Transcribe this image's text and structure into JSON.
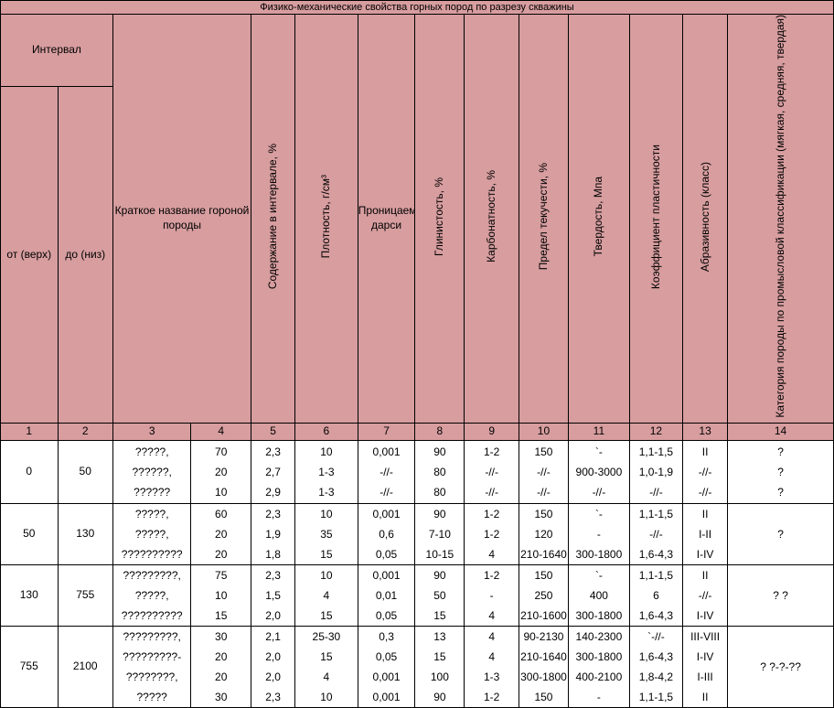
{
  "title": "Физико-механические свойства горных пород по разрезу скважины",
  "header": {
    "interval": "Интервал",
    "from": "от (верх)",
    "to": "до (низ)",
    "rock_name": "Краткое название гороной породы",
    "content": "Содержание в интервале, %",
    "density": "Плотность, г/см³",
    "permeability": "Проницаемость, дарси",
    "clay": "Глинистость, %",
    "carbonate": "Карбонатность, %",
    "yield_limit": "Предел текучести, %",
    "hardness": "Твердость, Мпа",
    "plasticity": "Коэффициент пластичности",
    "abrasiveness": "Абразивность (класс)",
    "category": "Категория породы по промысловой классификации (мягкая, средняя, твердая)"
  },
  "column_numbers": [
    "1",
    "2",
    "3",
    "4",
    "5",
    "6",
    "7",
    "8",
    "9",
    "10",
    "11",
    "12",
    "13",
    "14"
  ],
  "groups": [
    {
      "from": "0",
      "to": "50",
      "names": [
        "?????,",
        "??????,",
        "??????"
      ],
      "c4": [
        "70",
        "20",
        "10"
      ],
      "c5": [
        "2,3",
        "2,7",
        "2,9"
      ],
      "c6": [
        "10",
        "1-3",
        "1-3"
      ],
      "c7": [
        "0,001",
        "-//-",
        "-//-"
      ],
      "c8": [
        "90",
        "80",
        "80"
      ],
      "c9": [
        "1-2",
        "-//-",
        "-//-"
      ],
      "c10": [
        "150",
        "-//-",
        "-//-"
      ],
      "c11": [
        "`-",
        "900-3000",
        "-//-"
      ],
      "c12": [
        "1,1-1,5",
        "1,0-1,9",
        "-//-"
      ],
      "c13": [
        "II",
        "-//-",
        "-//-"
      ],
      "c14": [
        "?",
        "?",
        "?"
      ]
    },
    {
      "from": "50",
      "to": "130",
      "names": [
        "?????,",
        "?????,",
        "??????????"
      ],
      "c4": [
        "60",
        "20",
        "20"
      ],
      "c5": [
        "2,3",
        "1,9",
        "1,8"
      ],
      "c6": [
        "10",
        "35",
        "15"
      ],
      "c7": [
        "0,001",
        "0,6",
        "0,05"
      ],
      "c8": [
        "90",
        "7-10",
        "10-15"
      ],
      "c9": [
        "1-2",
        "1-2",
        "4"
      ],
      "c10": [
        "150",
        "120",
        "210-1640"
      ],
      "c11": [
        "`-",
        "-",
        "300-1800"
      ],
      "c12": [
        "1,1-1,5",
        "-//-",
        "1,6-4,3"
      ],
      "c13": [
        "II",
        "I-II",
        "I-IV"
      ],
      "c14": [
        "?"
      ]
    },
    {
      "from": "130",
      "to": "755",
      "names": [
        "?????????,",
        "?????,",
        "??????????"
      ],
      "c4": [
        "75",
        "10",
        "15"
      ],
      "c5": [
        "2,3",
        "1,5",
        "2,0"
      ],
      "c6": [
        "10",
        "4",
        "15"
      ],
      "c7": [
        "0,001",
        "0,01",
        "0,05"
      ],
      "c8": [
        "90",
        "50",
        "15"
      ],
      "c9": [
        "1-2",
        "-",
        "4"
      ],
      "c10": [
        "150",
        "250",
        "210-1600"
      ],
      "c11": [
        "`-",
        "400",
        "300-1800"
      ],
      "c12": [
        "1,1-1,5",
        "6",
        "1,6-4,3"
      ],
      "c13": [
        "II",
        "-//-",
        "I-IV"
      ],
      "c14": [
        "? ?"
      ]
    },
    {
      "from": "755",
      "to": "2100",
      "names": [
        "?????????,",
        "?????????-",
        "????????,",
        "?????"
      ],
      "c4": [
        "30",
        "20",
        "20",
        "30"
      ],
      "c5": [
        "2,1",
        "2,0",
        "2,0",
        "2,3"
      ],
      "c6": [
        "25-30",
        "15",
        "4",
        "10"
      ],
      "c7": [
        "0,3",
        "0,05",
        "0,001",
        "0,001"
      ],
      "c8": [
        "13",
        "15",
        "100",
        "90"
      ],
      "c9": [
        "4",
        "4",
        "1-3",
        "1-2"
      ],
      "c10": [
        "90-2130",
        "210-1640",
        "300-1800",
        "150"
      ],
      "c11": [
        "140-2300",
        "300-1800",
        "400-2100",
        "-"
      ],
      "c12": [
        "`-//-",
        "1,6-4,3",
        "1,8-4,2",
        "1,1-1,5"
      ],
      "c13": [
        "III-VIII",
        "I-IV",
        "I-III",
        "II"
      ],
      "c14": [
        "? ?-?-??"
      ]
    }
  ]
}
